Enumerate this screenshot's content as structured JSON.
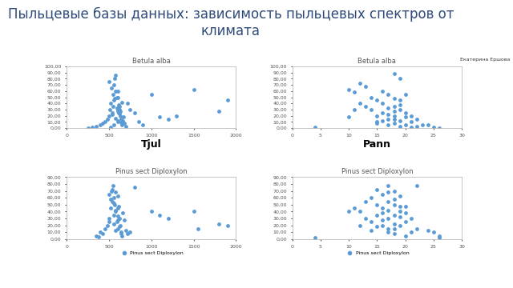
{
  "title": "Пыльцевые базы данных: зависимость пыльцевых спектров от климата",
  "speaker": "Екатерина Ершова",
  "chart_data": [
    {
      "type": "scatter",
      "title": "Betula alba",
      "x_label": "Tjul",
      "color": "#5b9bd5",
      "marker": "o",
      "grid": false,
      "x": [
        250,
        300,
        350,
        400,
        420,
        450,
        480,
        500,
        500,
        510,
        520,
        530,
        540,
        550,
        550,
        560,
        570,
        580,
        590,
        600,
        600,
        610,
        620,
        630,
        640,
        650,
        660,
        670,
        680,
        700,
        720,
        750,
        800,
        850,
        900,
        1000,
        1100,
        1200,
        1300,
        1500,
        1800,
        1900,
        560,
        580,
        600,
        620,
        540,
        600,
        590,
        610,
        630,
        570,
        650,
        600,
        580,
        620,
        600,
        640,
        560,
        520
      ],
      "values": [
        0,
        2,
        3,
        5,
        8,
        10,
        15,
        75,
        20,
        30,
        40,
        65,
        25,
        55,
        35,
        45,
        80,
        85,
        50,
        60,
        10,
        25,
        30,
        20,
        15,
        5,
        12,
        18,
        8,
        3,
        40,
        30,
        25,
        10,
        5,
        55,
        18,
        15,
        20,
        62,
        28,
        45,
        70,
        60,
        50,
        35,
        22,
        28,
        33,
        38,
        27,
        48,
        42,
        12,
        16,
        24,
        30,
        9,
        6,
        2
      ],
      "xlim": [
        0,
        2000
      ],
      "xticks": [
        0,
        500,
        1000,
        1500,
        2000
      ],
      "ylim": [
        0,
        100
      ],
      "yticks": [
        {
          "value": 0,
          "label": "0,00"
        },
        {
          "value": 10,
          "label": "10,00"
        },
        {
          "value": 20,
          "label": "20,00"
        },
        {
          "value": 30,
          "label": "30,00"
        },
        {
          "value": 40,
          "label": "40,00"
        },
        {
          "value": 50,
          "label": "50,00"
        },
        {
          "value": 60,
          "label": "60,00"
        },
        {
          "value": 70,
          "label": "70,00"
        },
        {
          "value": 80,
          "label": "80,00"
        },
        {
          "value": 90,
          "label": "90,00"
        },
        {
          "value": 100,
          "label": "100,00"
        }
      ]
    },
    {
      "type": "scatter",
      "title": "Betula alba",
      "x_label": "Pann",
      "color": "#5b9bd5",
      "marker": "o",
      "grid": false,
      "x": [
        4,
        10,
        10,
        11,
        11,
        12,
        12,
        13,
        13,
        14,
        14,
        15,
        15,
        15,
        16,
        16,
        16,
        17,
        17,
        17,
        18,
        18,
        18,
        18,
        19,
        19,
        19,
        19,
        20,
        20,
        20,
        21,
        21,
        22,
        22,
        23,
        24,
        25,
        26,
        17,
        18,
        19,
        16,
        20,
        18,
        17,
        19,
        15,
        21,
        18
      ],
      "values": [
        2,
        62,
        18,
        58,
        30,
        72,
        40,
        35,
        68,
        30,
        50,
        45,
        20,
        10,
        40,
        25,
        60,
        55,
        15,
        5,
        88,
        35,
        20,
        8,
        80,
        45,
        12,
        3,
        55,
        25,
        5,
        20,
        10,
        15,
        3,
        5,
        5,
        2,
        0,
        32,
        28,
        38,
        12,
        18,
        48,
        22,
        30,
        8,
        2,
        14
      ],
      "xlim": [
        0,
        30
      ],
      "xticks": [
        0,
        5,
        10,
        15,
        20,
        25,
        30
      ],
      "ylim": [
        0,
        100
      ],
      "yticks": [
        {
          "value": 0,
          "label": "0,00"
        },
        {
          "value": 10,
          "label": "10,00"
        },
        {
          "value": 20,
          "label": "20,00"
        },
        {
          "value": 30,
          "label": "30,00"
        },
        {
          "value": 40,
          "label": "40,00"
        },
        {
          "value": 50,
          "label": "50,00"
        },
        {
          "value": 60,
          "label": "60,00"
        },
        {
          "value": 70,
          "label": "70,00"
        },
        {
          "value": 80,
          "label": "80,00"
        },
        {
          "value": 90,
          "label": "90,00"
        },
        {
          "value": 100,
          "label": "100,00"
        }
      ]
    },
    {
      "type": "scatter",
      "title": "Pinus sect Diploxylon",
      "legend": "bottom",
      "grid": false,
      "x": [
        350,
        380,
        400,
        420,
        450,
        480,
        500,
        500,
        520,
        530,
        540,
        550,
        560,
        560,
        570,
        580,
        590,
        600,
        600,
        610,
        620,
        630,
        640,
        650,
        660,
        680,
        700,
        720,
        750,
        800,
        1000,
        1100,
        1200,
        1500,
        1550,
        1800,
        1900,
        540,
        560,
        580,
        600,
        620,
        500,
        520,
        580,
        600,
        640,
        560,
        600,
        580
      ],
      "series": [
        {
          "name": "Pinus sect Diploxylon",
          "color": "#5b9bd5",
          "marker": "o",
          "values": [
            5,
            3,
            10,
            8,
            15,
            20,
            30,
            65,
            45,
            70,
            55,
            78,
            60,
            35,
            50,
            40,
            25,
            62,
            15,
            48,
            30,
            20,
            10,
            5,
            38,
            28,
            12,
            8,
            10,
            75,
            40,
            35,
            30,
            40,
            15,
            22,
            20,
            72,
            52,
            42,
            33,
            18,
            25,
            58,
            68,
            28,
            8,
            22,
            45,
            12
          ]
        }
      ],
      "xlim": [
        0,
        2000
      ],
      "xticks": [
        0,
        500,
        1000,
        1500,
        2000
      ],
      "ylim": [
        0,
        90
      ],
      "yticks": [
        {
          "value": 0,
          "label": "0,00"
        },
        {
          "value": 10,
          "label": "10,00"
        },
        {
          "value": 20,
          "label": "20,00"
        },
        {
          "value": 30,
          "label": "30,00"
        },
        {
          "value": 40,
          "label": "40,00"
        },
        {
          "value": 50,
          "label": "50,00"
        },
        {
          "value": 60,
          "label": "60,00"
        },
        {
          "value": 70,
          "label": "70,00"
        },
        {
          "value": 80,
          "label": "80,00"
        },
        {
          "value": 90,
          "label": "90,00"
        }
      ]
    },
    {
      "type": "scatter",
      "title": "Pinus sect Diploxylon",
      "legend": "bottom",
      "grid": false,
      "x": [
        4,
        10,
        11,
        12,
        12,
        13,
        13,
        14,
        14,
        15,
        15,
        15,
        16,
        16,
        16,
        17,
        17,
        17,
        17,
        18,
        18,
        18,
        18,
        19,
        19,
        19,
        20,
        20,
        20,
        21,
        21,
        22,
        22,
        24,
        25,
        26,
        26,
        16,
        17,
        18,
        19,
        15,
        16,
        17,
        18,
        19,
        14,
        20,
        18,
        17
      ],
      "series": [
        {
          "name": "Pinus sect Diploxylon",
          "color": "#5b9bd5",
          "marker": "o",
          "values": [
            2,
            40,
            45,
            40,
            20,
            30,
            55,
            25,
            60,
            50,
            35,
            72,
            65,
            45,
            20,
            78,
            55,
            30,
            10,
            70,
            50,
            35,
            15,
            62,
            40,
            20,
            48,
            25,
            5,
            30,
            10,
            78,
            15,
            12,
            10,
            5,
            2,
            28,
            42,
            58,
            32,
            18,
            38,
            68,
            22,
            48,
            12,
            38,
            8,
            15
          ]
        }
      ],
      "xlim": [
        0,
        30
      ],
      "xticks": [
        0,
        5,
        10,
        15,
        20,
        25,
        30
      ],
      "ylim": [
        0,
        90
      ],
      "yticks": [
        {
          "value": 0,
          "label": "0,00"
        },
        {
          "value": 10,
          "label": "10,00"
        },
        {
          "value": 20,
          "label": "20,00"
        },
        {
          "value": 30,
          "label": "30,00"
        },
        {
          "value": 40,
          "label": "40,00"
        },
        {
          "value": 50,
          "label": "50,00"
        },
        {
          "value": 60,
          "label": "60,00"
        },
        {
          "value": 70,
          "label": "70,00"
        },
        {
          "value": 80,
          "label": "80,00"
        },
        {
          "value": 90,
          "label": "90,00"
        }
      ]
    }
  ]
}
